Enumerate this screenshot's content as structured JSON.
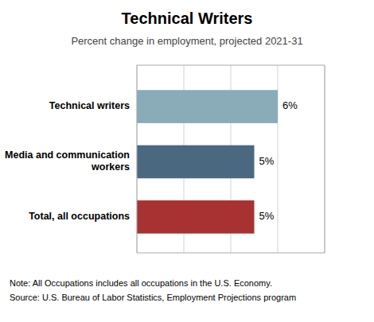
{
  "chart_data": {
    "type": "bar",
    "orientation": "horizontal",
    "title": "Technical Writers",
    "subtitle": "Percent change in employment, projected 2021-31",
    "categories": [
      "Total, all occupations",
      "Media and communication\nworkers",
      "Technical writers"
    ],
    "values": [
      5,
      5,
      6
    ],
    "value_labels": [
      "5%",
      "5%",
      "6%"
    ],
    "colors": [
      "#a83232",
      "#4a6880",
      "#8aabb8"
    ],
    "xlim": [
      0,
      8
    ],
    "xticks": [
      0,
      2,
      4,
      6,
      8
    ],
    "grid": true,
    "tick_labels": "y",
    "data_labels": true,
    "annotations": [
      "Note: All Occupations includes all occupations in the U.S. Economy.",
      "Source: U.S. Bureau of Labor Statistics, Employment Projections program"
    ]
  }
}
